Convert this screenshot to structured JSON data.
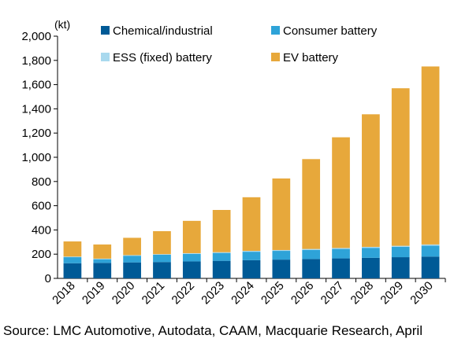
{
  "chart_data": {
    "type": "bar",
    "stacked": true,
    "unit": "(kt)",
    "categories": [
      "2018",
      "2019",
      "2020",
      "2021",
      "2022",
      "2023",
      "2024",
      "2025",
      "2026",
      "2027",
      "2028",
      "2029",
      "2030"
    ],
    "series": [
      {
        "name": "Chemical/industrial",
        "color": "#005a96",
        "values": [
          125,
          128,
          132,
          135,
          140,
          145,
          150,
          155,
          160,
          165,
          170,
          175,
          180
        ]
      },
      {
        "name": "Consumer battery",
        "color": "#2ea3d8",
        "values": [
          50,
          30,
          55,
          60,
          62,
          65,
          70,
          72,
          75,
          78,
          82,
          85,
          90
        ]
      },
      {
        "name": "ESS (fixed) battery",
        "color": "#a9d9ee",
        "values": [
          5,
          5,
          5,
          5,
          6,
          6,
          7,
          7,
          8,
          8,
          8,
          9,
          10
        ]
      },
      {
        "name": "EV battery",
        "color": "#e7a83b",
        "values": [
          125,
          117,
          143,
          190,
          267,
          349,
          443,
          591,
          742,
          914,
          1095,
          1301,
          1470
        ]
      }
    ],
    "ylim": [
      0,
      2000
    ],
    "yticks": [
      0,
      200,
      400,
      600,
      800,
      1000,
      1200,
      1400,
      1600,
      1800,
      2000
    ],
    "ytick_labels": [
      "0",
      "200",
      "400",
      "600",
      "800",
      "1,000",
      "1,200",
      "1,400",
      "1,600",
      "1,800",
      "2,000"
    ],
    "legend_placement": "top"
  },
  "source_text": "Source: LMC Automotive, Autodata, CAAM, Macquarie Research, April"
}
